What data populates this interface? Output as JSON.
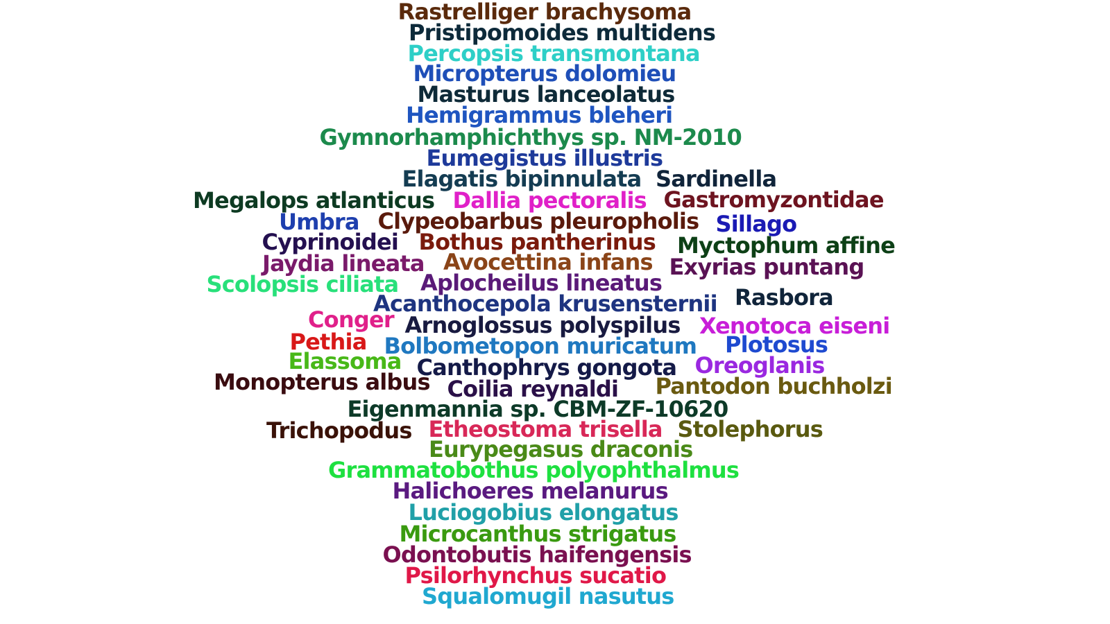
{
  "words": [
    {
      "text": "Rastrelliger brachysoma",
      "color": "#5a2a0c"
    },
    {
      "text": "Pristipomoides multidens",
      "color": "#0d2a3a"
    },
    {
      "text": "Percopsis transmontana",
      "color": "#2ecfc7"
    },
    {
      "text": "Micropterus dolomieu",
      "color": "#1f4fb8"
    },
    {
      "text": "Masturus lanceolatus",
      "color": "#0e2a38"
    },
    {
      "text": "Hemigrammus bleheri",
      "color": "#1f55c0"
    },
    {
      "text": "Gymnorhamphichthys sp. NM-2010",
      "color": "#1c8a4c"
    },
    {
      "text": "Eumegistus illustris",
      "color": "#1e3a9a"
    },
    {
      "text": "Elagatis bipinnulata",
      "color": "#143c52"
    },
    {
      "text": "Sardinella",
      "color": "#10243a"
    },
    {
      "text": "Megalops atlanticus",
      "color": "#0d3a22"
    },
    {
      "text": "Dallia pectoralis",
      "color": "#e020c8"
    },
    {
      "text": "Gastromyzontidae",
      "color": "#6e1420"
    },
    {
      "text": "Umbra",
      "color": "#1e3fae"
    },
    {
      "text": "Clypeobarbus pleuropholis",
      "color": "#5a1a0c"
    },
    {
      "text": "Sillago",
      "color": "#1a1ab4"
    },
    {
      "text": "Cyprinoidei",
      "color": "#241050"
    },
    {
      "text": "Bothus pantherinus",
      "color": "#7a1a0c"
    },
    {
      "text": "Myctophum affine",
      "color": "#0d4016"
    },
    {
      "text": "Jaydia lineata",
      "color": "#7a1a6a"
    },
    {
      "text": "Avocettina infans",
      "color": "#8a4418"
    },
    {
      "text": "Exyrias puntang",
      "color": "#5a1254"
    },
    {
      "text": "Scolopsis ciliata",
      "color": "#28e07a"
    },
    {
      "text": "Aplocheilus lineatus",
      "color": "#5a1a78"
    },
    {
      "text": "Acanthocepola krusensternii",
      "color": "#1e3480"
    },
    {
      "text": "Rasbora",
      "color": "#10243a"
    },
    {
      "text": "Conger",
      "color": "#e0208a"
    },
    {
      "text": "Arnoglossus polyspilus",
      "color": "#181a40"
    },
    {
      "text": "Xenotoca eiseni",
      "color": "#c81ed8"
    },
    {
      "text": "Pethia",
      "color": "#d81818"
    },
    {
      "text": "Bolbometopon muricatum",
      "color": "#1f78c0"
    },
    {
      "text": "Plotosus",
      "color": "#1e4ad0"
    },
    {
      "text": "Elassoma",
      "color": "#48b818"
    },
    {
      "text": "Canthophrys gongota",
      "color": "#141a48"
    },
    {
      "text": "Oreoglanis",
      "color": "#9a28e0"
    },
    {
      "text": "Monopterus albus",
      "color": "#3a0c10"
    },
    {
      "text": "Coilia reynaldi",
      "color": "#2a1048"
    },
    {
      "text": "Pantodon buchholzi",
      "color": "#6a5a10"
    },
    {
      "text": "Eigenmannia sp. CBM-ZF-10620",
      "color": "#0d3a28"
    },
    {
      "text": "Trichopodus",
      "color": "#3a1208"
    },
    {
      "text": "Etheostoma trisella",
      "color": "#d82858"
    },
    {
      "text": "Stolephorus",
      "color": "#5a5a10"
    },
    {
      "text": "Eurypegasus draconis",
      "color": "#4a8a18"
    },
    {
      "text": "Grammatobothus polyophthalmus",
      "color": "#1ee040"
    },
    {
      "text": "Halichoeres melanurus",
      "color": "#5a1a80"
    },
    {
      "text": "Luciogobius elongatus",
      "color": "#20a0a8"
    },
    {
      "text": "Microcanthus strigatus",
      "color": "#3a9a10"
    },
    {
      "text": "Odontobutis haifengensis",
      "color": "#7a1050"
    },
    {
      "text": "Psilorhynchus sucatio",
      "color": "#e01848"
    },
    {
      "text": "Squalomugil nasutus",
      "color": "#20a8d0"
    }
  ]
}
